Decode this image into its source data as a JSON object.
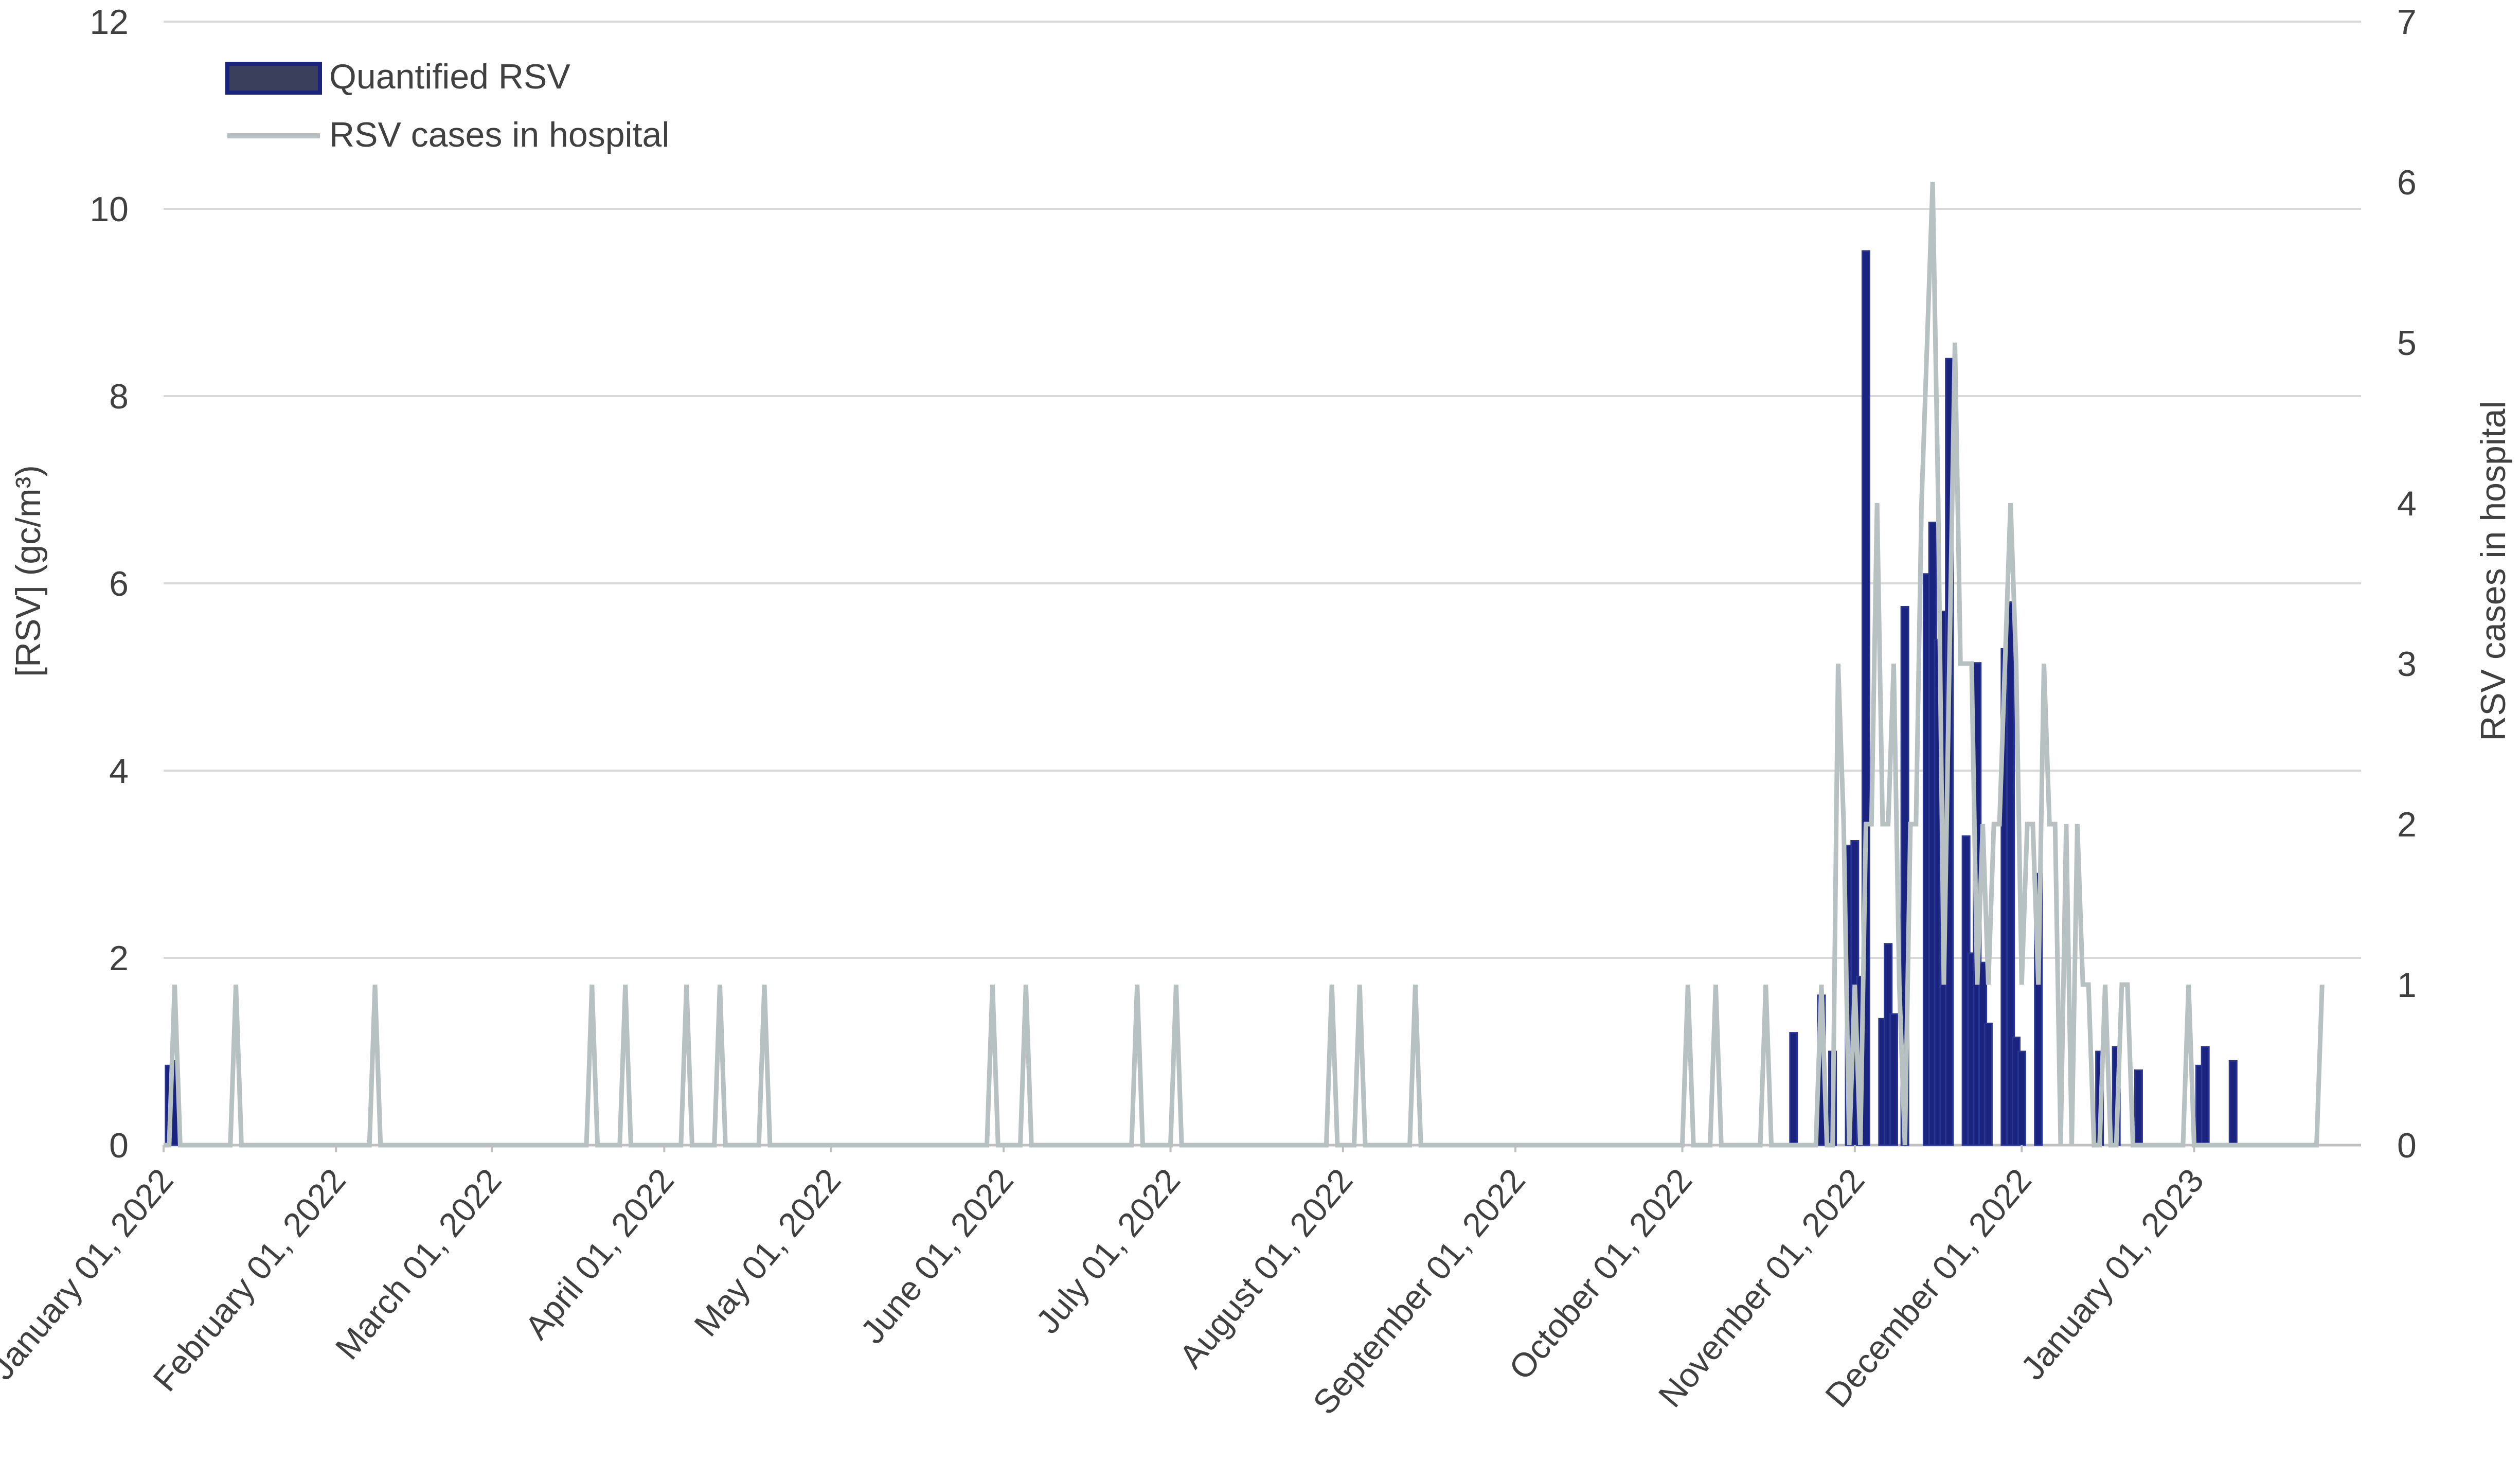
{
  "chart_data": {
    "type": "bar+line",
    "title": "",
    "left_axis": {
      "label": "[RSV] (gc/m³)",
      "ylim": [
        0,
        12
      ],
      "ticks": [
        "0",
        "2",
        "4",
        "6",
        "8",
        "10",
        "12"
      ]
    },
    "right_axis": {
      "label": "RSV cases in hospital",
      "ylim": [
        0,
        7
      ],
      "ticks": [
        "0",
        "1",
        "2",
        "3",
        "4",
        "5",
        "6",
        "7"
      ]
    },
    "x_axis": {
      "range": [
        "2022-01-01",
        "2023-01-31"
      ],
      "tick_dates": [
        "2022-01-01",
        "2022-02-01",
        "2022-03-01",
        "2022-04-01",
        "2022-05-01",
        "2022-06-01",
        "2022-07-01",
        "2022-08-01",
        "2022-09-01",
        "2022-10-01",
        "2022-11-01",
        "2022-12-01",
        "2023-01-01"
      ],
      "tick_labels": [
        "January 01, 2022",
        "February 01, 2022",
        "March 01, 2022",
        "April 01, 2022",
        "May 01, 2022",
        "June 01, 2022",
        "July 01, 2022",
        "August 01, 2022",
        "September 01, 2022",
        "October 01, 2022",
        "November 01, 2022",
        "December 01, 2022",
        "January 01, 2023"
      ]
    },
    "grid": true,
    "legend_position": "top-left",
    "colors": {
      "bar_fill": "#1a237e",
      "bar_stroke": "#283593",
      "line": "#b8c1c1",
      "grid": "#d9d9d9",
      "text": "#404040"
    },
    "series": [
      {
        "name": "Quantified RSV",
        "type": "bar",
        "axis": "left",
        "points": [
          {
            "x": "2022-01-02",
            "y": 0.85
          },
          {
            "x": "2022-01-03",
            "y": 0.9
          },
          {
            "x": "2022-10-21",
            "y": 1.2
          },
          {
            "x": "2022-10-26",
            "y": 1.6
          },
          {
            "x": "2022-10-28",
            "y": 1.0
          },
          {
            "x": "2022-10-31",
            "y": 3.2
          },
          {
            "x": "2022-11-01",
            "y": 3.25
          },
          {
            "x": "2022-11-02",
            "y": 1.8
          },
          {
            "x": "2022-11-03",
            "y": 9.55
          },
          {
            "x": "2022-11-06",
            "y": 1.35
          },
          {
            "x": "2022-11-07",
            "y": 2.15
          },
          {
            "x": "2022-11-08",
            "y": 1.4
          },
          {
            "x": "2022-11-10",
            "y": 5.75
          },
          {
            "x": "2022-11-14",
            "y": 6.1
          },
          {
            "x": "2022-11-15",
            "y": 6.65
          },
          {
            "x": "2022-11-16",
            "y": 5.4
          },
          {
            "x": "2022-11-17",
            "y": 5.7
          },
          {
            "x": "2022-11-18",
            "y": 8.4
          },
          {
            "x": "2022-11-21",
            "y": 3.3
          },
          {
            "x": "2022-11-22",
            "y": 2.05
          },
          {
            "x": "2022-11-23",
            "y": 5.15
          },
          {
            "x": "2022-11-24",
            "y": 1.95
          },
          {
            "x": "2022-11-25",
            "y": 1.3
          },
          {
            "x": "2022-11-28",
            "y": 5.3
          },
          {
            "x": "2022-11-29",
            "y": 5.8
          },
          {
            "x": "2022-11-30",
            "y": 1.15
          },
          {
            "x": "2022-12-01",
            "y": 1.0
          },
          {
            "x": "2022-12-04",
            "y": 2.9
          },
          {
            "x": "2022-12-15",
            "y": 1.0
          },
          {
            "x": "2022-12-18",
            "y": 1.05
          },
          {
            "x": "2022-12-22",
            "y": 0.8
          },
          {
            "x": "2023-01-02",
            "y": 0.85
          },
          {
            "x": "2023-01-03",
            "y": 1.05
          },
          {
            "x": "2023-01-08",
            "y": 0.9
          }
        ]
      },
      {
        "name": "RSV cases in hospital",
        "type": "line",
        "axis": "right",
        "points": [
          {
            "x": "2022-01-01",
            "y": 0
          },
          {
            "x": "2022-01-02",
            "y": 0
          },
          {
            "x": "2022-01-03",
            "y": 1
          },
          {
            "x": "2022-01-04",
            "y": 0
          },
          {
            "x": "2022-01-13",
            "y": 0
          },
          {
            "x": "2022-01-14",
            "y": 1
          },
          {
            "x": "2022-01-15",
            "y": 0
          },
          {
            "x": "2022-02-07",
            "y": 0
          },
          {
            "x": "2022-02-08",
            "y": 1
          },
          {
            "x": "2022-02-09",
            "y": 0
          },
          {
            "x": "2022-03-18",
            "y": 0
          },
          {
            "x": "2022-03-19",
            "y": 1
          },
          {
            "x": "2022-03-20",
            "y": 0
          },
          {
            "x": "2022-03-24",
            "y": 0
          },
          {
            "x": "2022-03-25",
            "y": 1
          },
          {
            "x": "2022-03-26",
            "y": 0
          },
          {
            "x": "2022-04-04",
            "y": 0
          },
          {
            "x": "2022-04-05",
            "y": 1
          },
          {
            "x": "2022-04-06",
            "y": 0
          },
          {
            "x": "2022-04-10",
            "y": 0
          },
          {
            "x": "2022-04-11",
            "y": 1
          },
          {
            "x": "2022-04-12",
            "y": 0
          },
          {
            "x": "2022-04-18",
            "y": 0
          },
          {
            "x": "2022-04-19",
            "y": 1
          },
          {
            "x": "2022-04-20",
            "y": 0
          },
          {
            "x": "2022-05-29",
            "y": 0
          },
          {
            "x": "2022-05-30",
            "y": 1
          },
          {
            "x": "2022-05-31",
            "y": 0
          },
          {
            "x": "2022-06-04",
            "y": 0
          },
          {
            "x": "2022-06-05",
            "y": 1
          },
          {
            "x": "2022-06-06",
            "y": 0
          },
          {
            "x": "2022-06-24",
            "y": 0
          },
          {
            "x": "2022-06-25",
            "y": 1
          },
          {
            "x": "2022-06-26",
            "y": 0
          },
          {
            "x": "2022-07-01",
            "y": 0
          },
          {
            "x": "2022-07-02",
            "y": 1
          },
          {
            "x": "2022-07-03",
            "y": 0
          },
          {
            "x": "2022-07-29",
            "y": 0
          },
          {
            "x": "2022-07-30",
            "y": 1
          },
          {
            "x": "2022-07-31",
            "y": 0
          },
          {
            "x": "2022-08-03",
            "y": 0
          },
          {
            "x": "2022-08-04",
            "y": 1
          },
          {
            "x": "2022-08-05",
            "y": 0
          },
          {
            "x": "2022-08-13",
            "y": 0
          },
          {
            "x": "2022-08-14",
            "y": 1
          },
          {
            "x": "2022-08-15",
            "y": 0
          },
          {
            "x": "2022-10-01",
            "y": 0
          },
          {
            "x": "2022-10-02",
            "y": 1
          },
          {
            "x": "2022-10-03",
            "y": 0
          },
          {
            "x": "2022-10-06",
            "y": 0
          },
          {
            "x": "2022-10-07",
            "y": 1
          },
          {
            "x": "2022-10-08",
            "y": 0
          },
          {
            "x": "2022-10-15",
            "y": 0
          },
          {
            "x": "2022-10-16",
            "y": 1
          },
          {
            "x": "2022-10-17",
            "y": 0
          },
          {
            "x": "2022-10-25",
            "y": 0
          },
          {
            "x": "2022-10-26",
            "y": 1
          },
          {
            "x": "2022-10-27",
            "y": 0
          },
          {
            "x": "2022-10-28",
            "y": 0
          },
          {
            "x": "2022-10-29",
            "y": 3
          },
          {
            "x": "2022-10-30",
            "y": 2
          },
          {
            "x": "2022-10-31",
            "y": 0
          },
          {
            "x": "2022-11-01",
            "y": 1
          },
          {
            "x": "2022-11-02",
            "y": 0
          },
          {
            "x": "2022-11-03",
            "y": 2
          },
          {
            "x": "2022-11-04",
            "y": 2
          },
          {
            "x": "2022-11-05",
            "y": 4
          },
          {
            "x": "2022-11-06",
            "y": 2
          },
          {
            "x": "2022-11-07",
            "y": 2
          },
          {
            "x": "2022-11-08",
            "y": 3
          },
          {
            "x": "2022-11-09",
            "y": 1
          },
          {
            "x": "2022-11-10",
            "y": 0
          },
          {
            "x": "2022-11-11",
            "y": 2
          },
          {
            "x": "2022-11-12",
            "y": 2
          },
          {
            "x": "2022-11-13",
            "y": 4
          },
          {
            "x": "2022-11-14",
            "y": 5
          },
          {
            "x": "2022-11-15",
            "y": 6
          },
          {
            "x": "2022-11-16",
            "y": 4
          },
          {
            "x": "2022-11-17",
            "y": 1
          },
          {
            "x": "2022-11-18",
            "y": 3
          },
          {
            "x": "2022-11-19",
            "y": 5
          },
          {
            "x": "2022-11-20",
            "y": 3
          },
          {
            "x": "2022-11-21",
            "y": 3
          },
          {
            "x": "2022-11-22",
            "y": 3
          },
          {
            "x": "2022-11-23",
            "y": 1
          },
          {
            "x": "2022-11-24",
            "y": 2
          },
          {
            "x": "2022-11-25",
            "y": 1
          },
          {
            "x": "2022-11-26",
            "y": 2
          },
          {
            "x": "2022-11-27",
            "y": 2
          },
          {
            "x": "2022-11-28",
            "y": 3
          },
          {
            "x": "2022-11-29",
            "y": 4
          },
          {
            "x": "2022-11-30",
            "y": 3
          },
          {
            "x": "2022-12-01",
            "y": 1
          },
          {
            "x": "2022-12-02",
            "y": 2
          },
          {
            "x": "2022-12-03",
            "y": 2
          },
          {
            "x": "2022-12-04",
            "y": 1
          },
          {
            "x": "2022-12-05",
            "y": 3
          },
          {
            "x": "2022-12-06",
            "y": 2
          },
          {
            "x": "2022-12-07",
            "y": 2
          },
          {
            "x": "2022-12-08",
            "y": 0
          },
          {
            "x": "2022-12-09",
            "y": 2
          },
          {
            "x": "2022-12-10",
            "y": 0
          },
          {
            "x": "2022-12-11",
            "y": 2
          },
          {
            "x": "2022-12-12",
            "y": 1
          },
          {
            "x": "2022-12-13",
            "y": 1
          },
          {
            "x": "2022-12-14",
            "y": 0
          },
          {
            "x": "2022-12-15",
            "y": 0
          },
          {
            "x": "2022-12-16",
            "y": 1
          },
          {
            "x": "2022-12-17",
            "y": 0
          },
          {
            "x": "2022-12-18",
            "y": 0
          },
          {
            "x": "2022-12-19",
            "y": 1
          },
          {
            "x": "2022-12-20",
            "y": 1
          },
          {
            "x": "2022-12-21",
            "y": 0
          },
          {
            "x": "2022-12-30",
            "y": 0
          },
          {
            "x": "2022-12-31",
            "y": 1
          },
          {
            "x": "2023-01-01",
            "y": 0
          },
          {
            "x": "2023-01-23",
            "y": 0
          },
          {
            "x": "2023-01-24",
            "y": 1
          }
        ]
      }
    ]
  }
}
